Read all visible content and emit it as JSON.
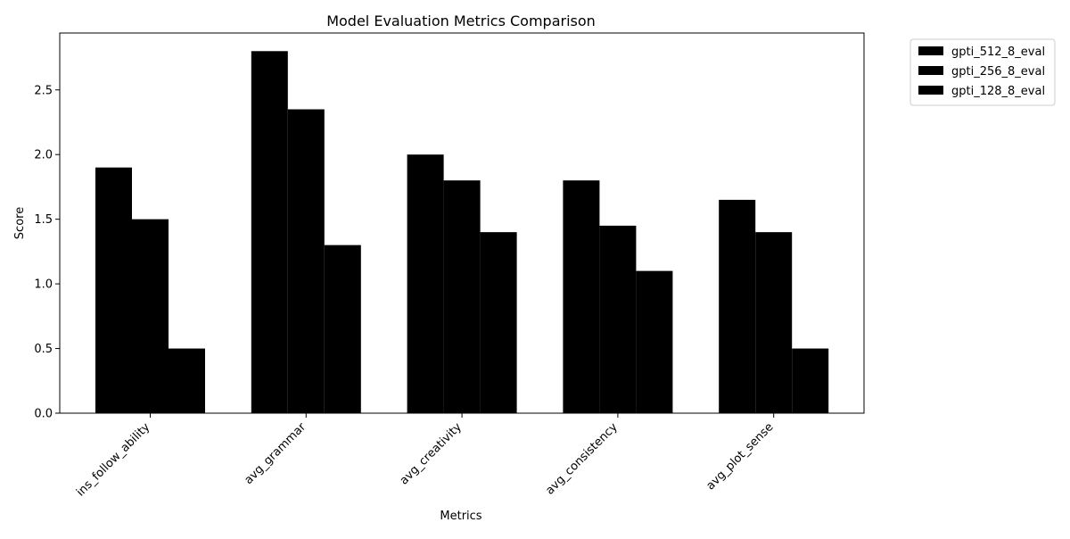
{
  "chart_data": {
    "type": "bar",
    "title": "Model Evaluation Metrics Comparison",
    "xlabel": "Metrics",
    "ylabel": "Score",
    "categories": [
      "ins_follow_ability",
      "avg_grammar",
      "avg_creativity",
      "avg_consistency",
      "avg_plot_sense"
    ],
    "series": [
      {
        "name": "gpti_512_8_eval",
        "values": [
          1.9,
          2.8,
          2.0,
          1.8,
          1.65
        ]
      },
      {
        "name": "gpti_256_8_eval",
        "values": [
          1.5,
          2.35,
          1.8,
          1.45,
          1.4
        ]
      },
      {
        "name": "gpti_128_8_eval",
        "values": [
          0.5,
          1.3,
          1.4,
          1.1,
          0.5
        ]
      }
    ],
    "ylim": [
      0,
      2.94
    ],
    "yticks": [
      "0.0",
      "0.5",
      "1.0",
      "1.5",
      "2.0",
      "2.5"
    ],
    "grid": false,
    "legend_position": "outside-top-right",
    "bar_color": "#000000"
  }
}
